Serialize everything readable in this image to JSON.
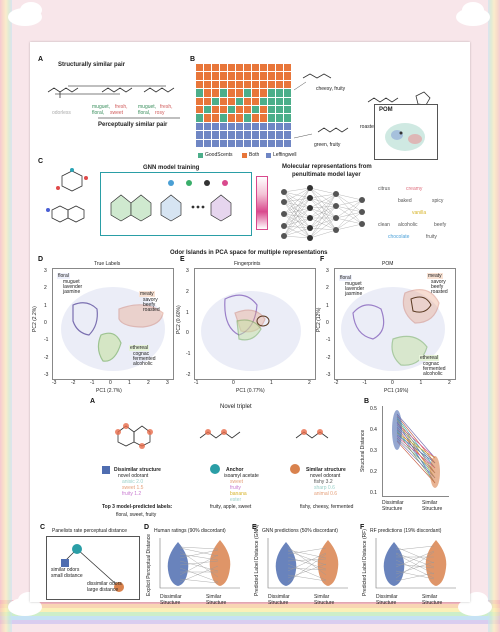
{
  "A1": {
    "panel": "A",
    "title_top": "Structurally similar pair",
    "title_bottom": "Perceptually similar pair",
    "m1": "odorless",
    "m2a": "muguet,",
    "m2b": "fresh,",
    "m2c": "floral,",
    "m2d": "sweet",
    "m3a": "muguet,",
    "m3b": "fresh,",
    "m3c": "floral,",
    "m3d": "rosy"
  },
  "B1": {
    "panel": "B",
    "desc1": "cheesy, fruity",
    "desc2": "roasted, creamy, cocoa",
    "desc3": "green, fruity",
    "legend": [
      "GoodScents",
      "Both",
      "Leffingwell"
    ],
    "legend_colors": [
      "#4cae8a",
      "#e8763a",
      "#6f86c4"
    ],
    "pom": "POM"
  },
  "C1": {
    "panel": "C",
    "gnn_title": "GNN model training",
    "mol_rep": "Molecular representations from",
    "penult": "penultimate model layer",
    "words": [
      "citrus",
      "creamy",
      "baked",
      "spicy",
      "vanilla",
      "clean",
      "alcoholic",
      "beefy",
      "chocolate",
      "fruity"
    ],
    "word_colors": [
      "#555",
      "#e0707f",
      "#555",
      "#555",
      "#d7b42a",
      "#555",
      "#555",
      "#555",
      "#4aa0d8",
      "#555"
    ]
  },
  "D1": {
    "title": "Odor Islands in PCA space for multiple representations",
    "D": "D",
    "E": "E",
    "F": "F",
    "d_title": "True Labels",
    "e_title": "Fingerprints",
    "f_title": "POM",
    "d_x": "PC1 (2.7%)",
    "d_y": "PC2 (2.2%)",
    "e_x": "PC1 (0.77%)",
    "e_y": "PC2 (0.60%)",
    "f_x": "PC1 (16%)",
    "f_y": "PC2 (12%)",
    "floral_h": "floral",
    "floral": [
      "muguet",
      "lavender",
      "jasmine"
    ],
    "meaty_h": "meaty",
    "meaty": [
      "savory",
      "beefy",
      "roasted"
    ],
    "ethereal_h": "ethereal",
    "ethereal": [
      "cognac",
      "fermented",
      "alcoholic"
    ],
    "d_xt": [
      "-3",
      "-2",
      "-1",
      "0",
      "1",
      "2",
      "3"
    ],
    "d_yt": [
      "3",
      "2",
      "1",
      "0",
      "-1",
      "-2",
      "-3"
    ],
    "e_xt": [
      "-1",
      "0",
      "1",
      "2"
    ],
    "e_yt": [
      "3",
      "2",
      "1",
      "0",
      "-1",
      "-2"
    ],
    "f_xt": [
      "-2",
      "-1",
      "0",
      "1",
      "2"
    ],
    "f_yt": [
      "3",
      "2",
      "1",
      "0",
      "-1",
      "-2",
      "-3"
    ]
  },
  "A2": {
    "panel": "A",
    "title": "Novel triplet",
    "dis_h": "Dissimilar structure",
    "dis_s": "novel odorant",
    "dis_l1": "anisic 2.0",
    "dis_l2": "sweet 1.5",
    "dis_l3": "fruity 1.2",
    "anc_h": "Anchor",
    "anc_s": "isoamyl acetate",
    "anc_l1": "sweet",
    "anc_l2": "fruity",
    "anc_l3": "banana",
    "anc_l4": "ester",
    "sim_h": "Similar structure",
    "sim_s": "novel odorant",
    "sim_l1": "fishy 3.2",
    "sim_l2": "sharp 0.6",
    "sim_l3": "animal 0.6",
    "top3": "Top 3 model-predicted labels:",
    "p1": "floral, sweet, fruity",
    "p2": "fruity, apple, sweet",
    "p3": "fishy, cheesy, fermented"
  },
  "B2": {
    "panel": "B",
    "ylabel": "Structural Distance",
    "x1": "Dissimilar",
    "x2": "Similar",
    "x1b": "Structure",
    "x2b": "Structure",
    "yt": [
      "0.5",
      "0.4",
      "0.3",
      "0.2",
      "0.1"
    ]
  },
  "C2": {
    "panel": "C",
    "title": "Panelists rate perceptual distance",
    "t1": "similar odors",
    "t2": "small distance",
    "t3": "dissimilar odors",
    "t4": "large distance"
  },
  "D2": {
    "panel": "D",
    "title": "Human ratings (90% discordant)",
    "ylabel": "Explicit Perceptual Distance"
  },
  "E2": {
    "panel": "E",
    "title": "GNN predictions (50% discordant)",
    "ylabel": "Predicted Label Distance (GNN)"
  },
  "F2": {
    "panel": "F",
    "title": "RF predictions (19% discordant)",
    "ylabel": "Predicted Label Distance (RF)"
  },
  "violin": {
    "x1": "Dissimilar",
    "x2": "Similar",
    "x1b": "Structure",
    "x2b": "Structure"
  },
  "colors": {
    "blue": "#4f6db0",
    "orange": "#d9824d",
    "teal": "#2a9ea6"
  }
}
